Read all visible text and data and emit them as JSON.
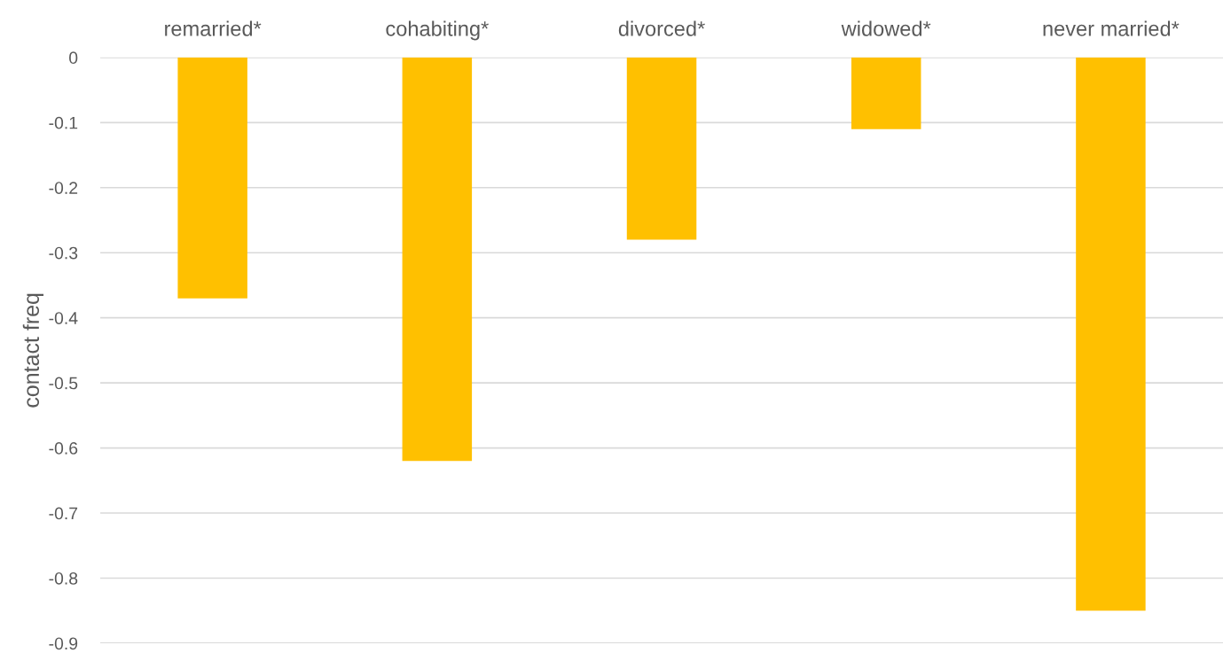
{
  "chart_data": {
    "type": "bar",
    "categories": [
      "remarried*",
      "cohabiting*",
      "divorced*",
      "widowed*",
      "never married*"
    ],
    "values": [
      -0.37,
      -0.62,
      -0.28,
      -0.11,
      -0.85
    ],
    "color": "#ffc000",
    "ylabel": "contact freq",
    "ylim": [
      -0.9,
      0
    ],
    "yticks": [
      0,
      -0.1,
      -0.2,
      -0.3,
      -0.4,
      -0.5,
      -0.6,
      -0.7,
      -0.8,
      -0.9
    ],
    "grid": "y"
  }
}
